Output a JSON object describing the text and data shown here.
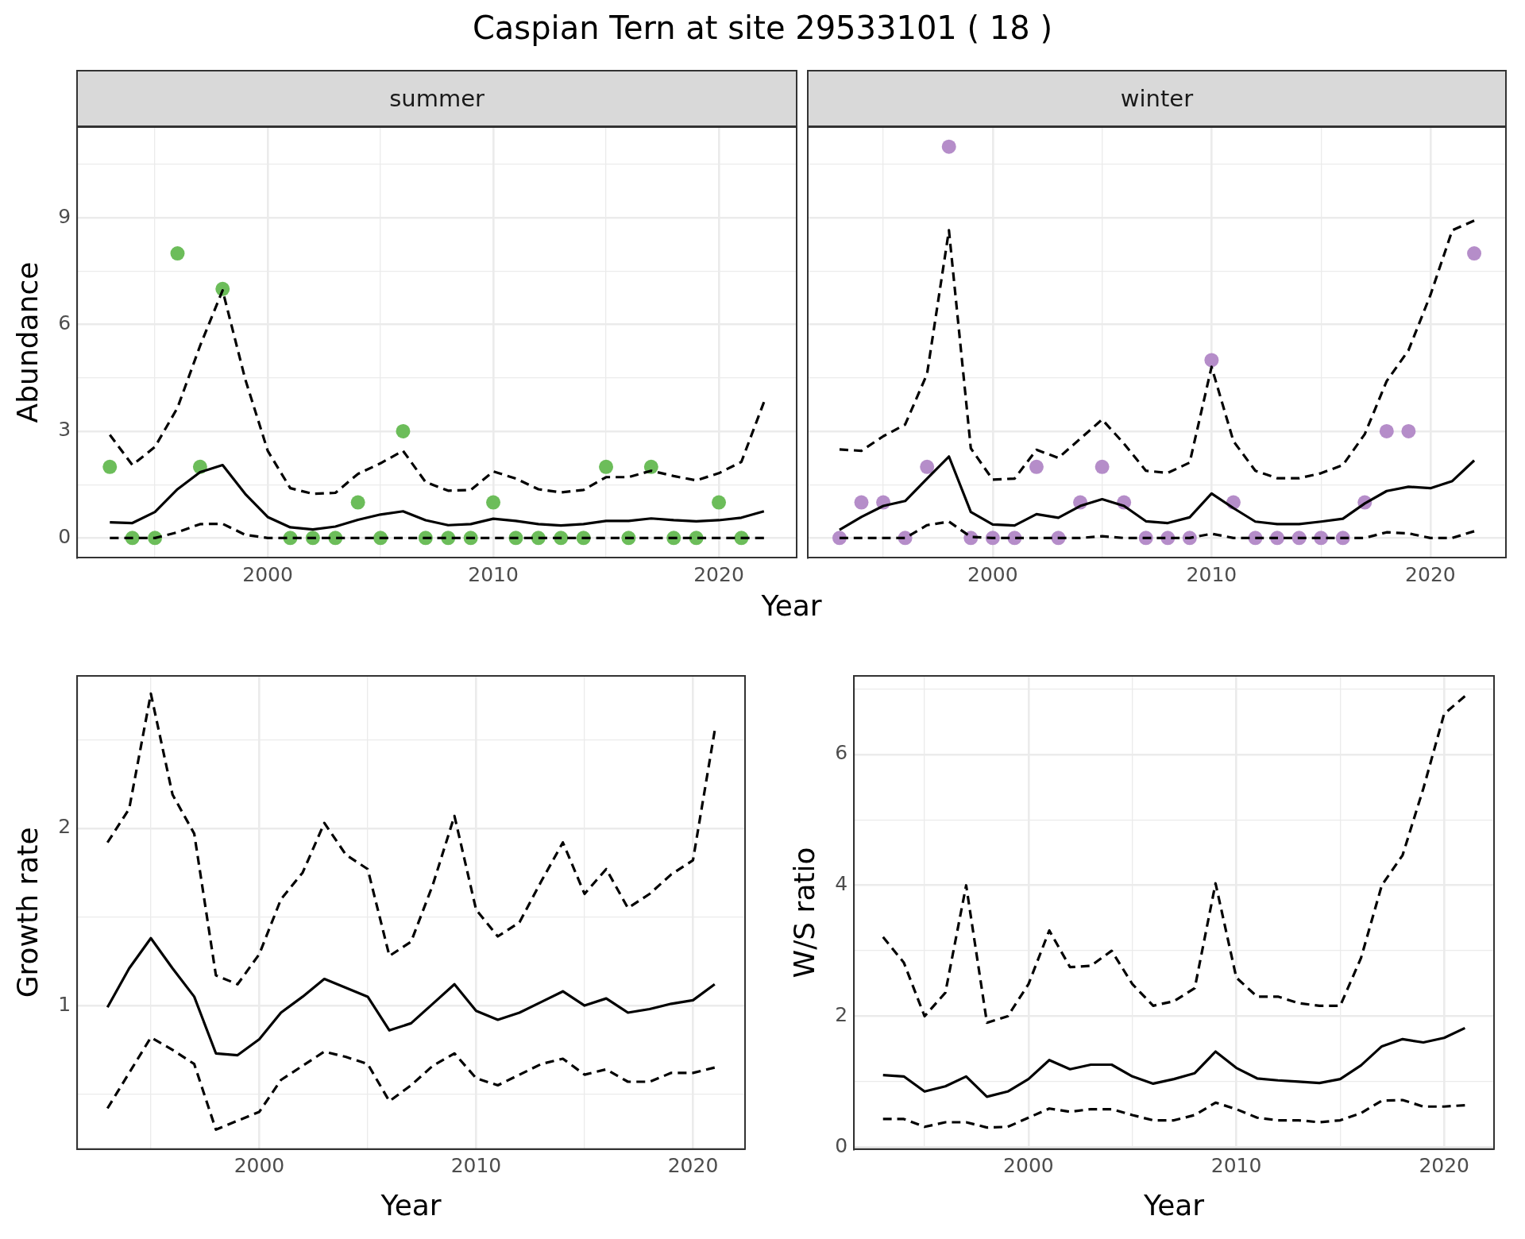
{
  "chart_data": [
    {
      "type": "scatter",
      "title": "Caspian Tern at site 29533101 ( 18 )",
      "subtitle": "summer",
      "xlabel": "Year",
      "ylabel": "Abundance",
      "grid": true,
      "x": [
        1993,
        1994,
        1995,
        1996,
        1997,
        1998,
        1999,
        2000,
        2001,
        2002,
        2003,
        2004,
        2005,
        2006,
        2007,
        2008,
        2009,
        2010,
        2011,
        2012,
        2013,
        2014,
        2015,
        2016,
        2017,
        2018,
        2019,
        2020,
        2021,
        2022
      ],
      "xlim": [
        1991.55,
        2023.45
      ],
      "xticks": [
        {
          "value": 1995,
          "label": null
        },
        2000,
        {
          "value": 2005,
          "label": null
        },
        2010,
        {
          "value": 2015,
          "label": null
        },
        2020
      ],
      "ylim": [
        -0.55,
        11.55
      ],
      "yticks": [
        0,
        {
          "value": 1.5,
          "label": null
        },
        3,
        {
          "value": 4.5,
          "label": null
        },
        6,
        {
          "value": 7.5,
          "label": null
        },
        9,
        {
          "value": 10.5,
          "label": null
        }
      ],
      "series": [
        {
          "type": "line",
          "line_style": "dashed",
          "color": "#000000",
          "values": [
            2.9,
            2.05,
            2.56,
            3.66,
            5.4,
            6.96,
            4.47,
            2.45,
            1.4,
            1.24,
            1.27,
            1.8,
            2.1,
            2.45,
            1.57,
            1.33,
            1.35,
            1.87,
            1.67,
            1.37,
            1.28,
            1.35,
            1.71,
            1.71,
            1.89,
            1.74,
            1.62,
            1.82,
            2.14,
            3.82
          ]
        },
        {
          "type": "line",
          "line_style": "dashed",
          "color": "#000000",
          "values": [
            0,
            0,
            0,
            0.16,
            0.39,
            0.4,
            0.09,
            0,
            0,
            0,
            0,
            0,
            0,
            0,
            0,
            0,
            0,
            0,
            0,
            0,
            0,
            0,
            0,
            0,
            0,
            0,
            0,
            0,
            0,
            0
          ]
        },
        {
          "type": "line",
          "line_style": "solid",
          "color": "#000000",
          "values": [
            0.44,
            0.42,
            0.73,
            1.37,
            1.85,
            2.05,
            1.24,
            0.59,
            0.3,
            0.24,
            0.32,
            0.51,
            0.66,
            0.75,
            0.5,
            0.36,
            0.39,
            0.54,
            0.48,
            0.39,
            0.35,
            0.39,
            0.48,
            0.48,
            0.55,
            0.5,
            0.47,
            0.5,
            0.57,
            0.75
          ]
        },
        {
          "marker": "circle",
          "color": "#6cbd5a",
          "values": [
            2,
            0,
            0,
            8,
            2,
            7,
            null,
            null,
            0,
            0,
            0,
            1,
            0,
            3,
            0,
            0,
            0,
            1,
            0,
            0,
            0,
            0,
            2,
            0,
            2,
            0,
            0,
            1,
            0,
            null
          ]
        }
      ]
    },
    {
      "type": "scatter",
      "subtitle": "winter",
      "grid": true,
      "tick_labels": "x",
      "x": [
        1993,
        1994,
        1995,
        1996,
        1997,
        1998,
        1999,
        2000,
        2001,
        2002,
        2003,
        2004,
        2005,
        2006,
        2007,
        2008,
        2009,
        2010,
        2011,
        2012,
        2013,
        2014,
        2015,
        2016,
        2017,
        2018,
        2019,
        2020,
        2021,
        2022
      ],
      "xlim": [
        1991.55,
        2023.45
      ],
      "xticks": [
        {
          "value": 1995,
          "label": null
        },
        2000,
        {
          "value": 2005,
          "label": null
        },
        2010,
        {
          "value": 2015,
          "label": null
        },
        2020
      ],
      "ylim": [
        -0.55,
        11.55
      ],
      "yticks": [
        0,
        {
          "value": 1.5,
          "label": null
        },
        3,
        {
          "value": 4.5,
          "label": null
        },
        6,
        {
          "value": 7.5,
          "label": null
        },
        9,
        {
          "value": 10.5,
          "label": null
        }
      ],
      "series": [
        {
          "type": "line",
          "line_style": "dashed",
          "color": "#000000",
          "values": [
            2.49,
            2.45,
            2.86,
            3.19,
            4.61,
            8.65,
            2.52,
            1.64,
            1.67,
            2.48,
            2.25,
            2.79,
            3.33,
            2.65,
            1.89,
            1.83,
            2.12,
            4.81,
            2.72,
            1.89,
            1.68,
            1.68,
            1.82,
            2.05,
            2.92,
            4.41,
            5.28,
            6.83,
            8.65,
            8.92
          ]
        },
        {
          "type": "line",
          "line_style": "dashed",
          "color": "#000000",
          "values": [
            0,
            0,
            0,
            0,
            0.36,
            0.46,
            0.03,
            0,
            0,
            0,
            0,
            0,
            0.05,
            0,
            0,
            0,
            0,
            0.12,
            0,
            0,
            0,
            0,
            0,
            0,
            0,
            0.16,
            0.13,
            0,
            0,
            0.19
          ]
        },
        {
          "type": "line",
          "line_style": "solid",
          "color": "#000000",
          "values": [
            0.23,
            0.59,
            0.9,
            1.04,
            1.67,
            2.29,
            0.73,
            0.38,
            0.35,
            0.67,
            0.57,
            0.9,
            1.09,
            0.9,
            0.47,
            0.42,
            0.58,
            1.25,
            0.84,
            0.46,
            0.39,
            0.39,
            0.46,
            0.54,
            0.97,
            1.32,
            1.44,
            1.4,
            1.6,
            2.18
          ]
        },
        {
          "marker": "circle",
          "color": "#b58dc9",
          "values": [
            0,
            1,
            1,
            0,
            2,
            11,
            0,
            0,
            0,
            2,
            0,
            1,
            2,
            1,
            0,
            0,
            0,
            5,
            1,
            0,
            0,
            0,
            0,
            0,
            1,
            3,
            3,
            null,
            null,
            8
          ]
        }
      ]
    },
    {
      "type": "line",
      "xlabel": "Year",
      "ylabel": "Growth rate",
      "grid": true,
      "x": [
        1993,
        1994,
        1995,
        1996,
        1997,
        1998,
        1999,
        2000,
        2001,
        2002,
        2003,
        2004,
        2005,
        2006,
        2007,
        2008,
        2009,
        2010,
        2011,
        2012,
        2013,
        2014,
        2015,
        2016,
        2017,
        2018,
        2019,
        2020,
        2021
      ],
      "xlim": [
        1991.6,
        2022.4
      ],
      "xticks": [
        {
          "value": 1995,
          "label": null
        },
        2000,
        {
          "value": 2005,
          "label": null
        },
        2010,
        {
          "value": 2015,
          "label": null
        },
        2020
      ],
      "ylim": [
        0.19,
        2.86
      ],
      "yticks": [
        {
          "value": 0.5,
          "label": null
        },
        1,
        {
          "value": 1.5,
          "label": null
        },
        2,
        {
          "value": 2.5,
          "label": null
        }
      ],
      "series": [
        {
          "line_style": "dashed",
          "color": "#000000",
          "values": [
            1.92,
            2.11,
            2.76,
            2.19,
            1.97,
            1.17,
            1.12,
            1.29,
            1.6,
            1.75,
            2.03,
            1.85,
            1.77,
            1.28,
            1.36,
            1.68,
            2.07,
            1.54,
            1.39,
            1.47,
            1.7,
            1.92,
            1.63,
            1.77,
            1.55,
            1.63,
            1.74,
            1.82,
            2.55
          ]
        },
        {
          "line_style": "dashed",
          "color": "#000000",
          "values": [
            0.42,
            0.62,
            0.82,
            0.75,
            0.67,
            0.3,
            0.35,
            0.4,
            0.58,
            0.66,
            0.74,
            0.71,
            0.67,
            0.46,
            0.55,
            0.66,
            0.73,
            0.59,
            0.55,
            0.61,
            0.67,
            0.7,
            0.61,
            0.64,
            0.57,
            0.57,
            0.62,
            0.62,
            0.65
          ]
        },
        {
          "line_style": "solid",
          "color": "#000000",
          "values": [
            0.99,
            1.21,
            1.38,
            1.21,
            1.05,
            0.73,
            0.72,
            0.81,
            0.96,
            1.05,
            1.15,
            1.1,
            1.05,
            0.86,
            0.9,
            1.01,
            1.12,
            0.97,
            0.92,
            0.96,
            1.02,
            1.08,
            1,
            1.04,
            0.96,
            0.98,
            1.01,
            1.03,
            1.12
          ]
        }
      ]
    },
    {
      "type": "line",
      "xlabel": "Year",
      "ylabel": "W/S ratio",
      "grid": true,
      "x": [
        1993,
        1994,
        1995,
        1996,
        1997,
        1998,
        1999,
        2000,
        2001,
        2002,
        2003,
        2004,
        2005,
        2006,
        2007,
        2008,
        2009,
        2010,
        2011,
        2012,
        2013,
        2014,
        2015,
        2016,
        2017,
        2018,
        2019,
        2020,
        2021
      ],
      "xlim": [
        1991.6,
        2022.4
      ],
      "xticks": [
        {
          "value": 1995,
          "label": null
        },
        2000,
        {
          "value": 2005,
          "label": null
        },
        2010,
        {
          "value": 2015,
          "label": null
        },
        2020
      ],
      "ylim": [
        -0.03,
        7.2
      ],
      "yticks": [
        0,
        {
          "value": 1,
          "label": null
        },
        2,
        {
          "value": 3,
          "label": null
        },
        4,
        {
          "value": 5,
          "label": null
        },
        6,
        {
          "value": 7,
          "label": null
        }
      ],
      "series": [
        {
          "line_style": "dashed",
          "color": "#000000",
          "values": [
            3.21,
            2.82,
            2,
            2.36,
            4,
            1.9,
            2,
            2.49,
            3.31,
            2.75,
            2.77,
            3,
            2.49,
            2.16,
            2.23,
            2.43,
            4.03,
            2.59,
            2.3,
            2.3,
            2.2,
            2.16,
            2.16,
            2.89,
            4,
            4.46,
            5.48,
            6.62,
            6.89
          ]
        },
        {
          "line_style": "dashed",
          "color": "#000000",
          "values": [
            0.43,
            0.43,
            0.31,
            0.38,
            0.38,
            0.3,
            0.31,
            0.45,
            0.59,
            0.54,
            0.58,
            0.58,
            0.49,
            0.41,
            0.41,
            0.49,
            0.68,
            0.58,
            0.45,
            0.41,
            0.41,
            0.38,
            0.41,
            0.52,
            0.71,
            0.72,
            0.62,
            0.62,
            0.64
          ]
        },
        {
          "line_style": "solid",
          "color": "#000000",
          "values": [
            1.1,
            1.08,
            0.85,
            0.93,
            1.08,
            0.77,
            0.85,
            1.04,
            1.33,
            1.19,
            1.26,
            1.26,
            1.08,
            0.97,
            1.04,
            1.13,
            1.46,
            1.21,
            1.05,
            1.02,
            1,
            0.98,
            1.04,
            1.25,
            1.54,
            1.65,
            1.6,
            1.67,
            1.82
          ]
        }
      ]
    }
  ]
}
